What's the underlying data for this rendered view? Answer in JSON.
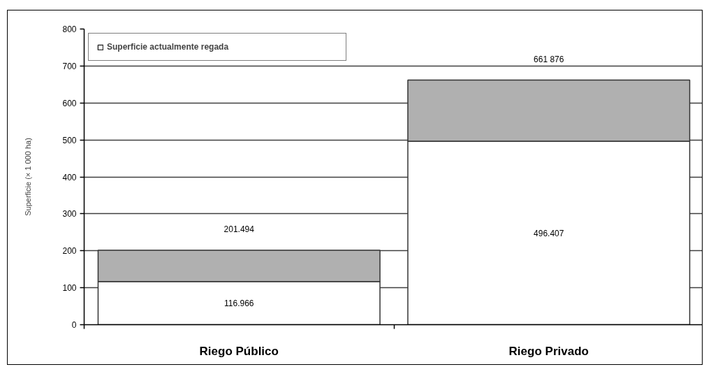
{
  "chart_data": {
    "type": "bar",
    "stacked": true,
    "categories": [
      "Riego Público",
      "Riego Privado"
    ],
    "series": [
      {
        "name": "Superficie actualmente regada",
        "color": "#ffffff",
        "values": [
          116.966,
          496.407
        ],
        "value_labels": [
          "116.966",
          "496.407"
        ]
      },
      {
        "color": "#b0b0b0",
        "values": [
          84.528,
          165.469
        ]
      }
    ],
    "totals": [
      "201.494",
      "661 876"
    ],
    "ylabel": "Superficie (× 1 000 ha)",
    "ylim": [
      0,
      800
    ],
    "yticks": [
      0,
      100,
      200,
      300,
      400,
      500,
      600,
      700,
      800
    ],
    "grid": "y",
    "legend": "top left"
  }
}
